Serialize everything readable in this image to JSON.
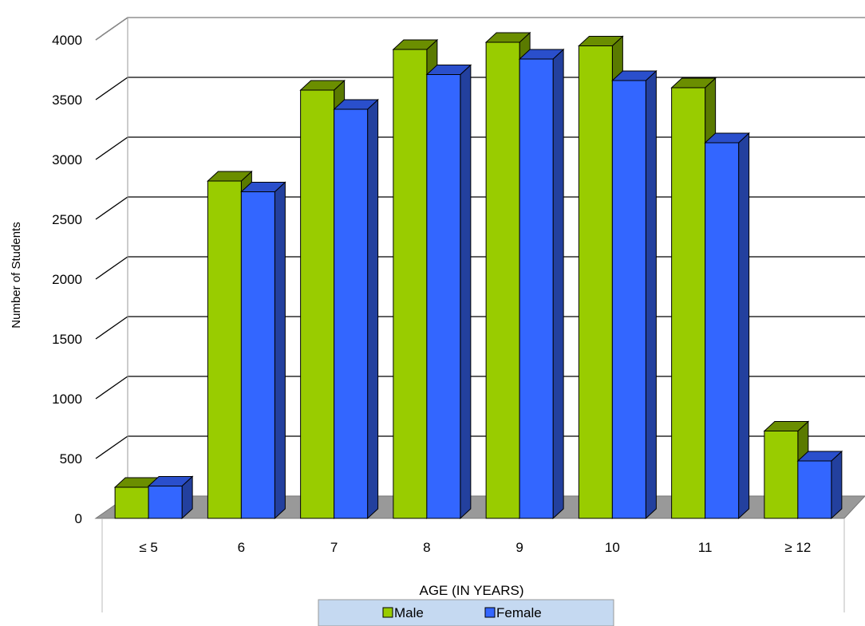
{
  "chart_data": {
    "type": "bar",
    "categories": [
      "≤ 5",
      "6",
      "7",
      "8",
      "9",
      "10",
      "11",
      "≥ 12"
    ],
    "series": [
      {
        "name": "Male",
        "values": [
          260,
          2820,
          3580,
          3920,
          3980,
          3950,
          3600,
          730
        ],
        "color": "#99cc00",
        "top_color": "#6b8e00",
        "side_color": "#5a7a00"
      },
      {
        "name": "Female",
        "values": [
          270,
          2730,
          3420,
          3710,
          3840,
          3660,
          3140,
          480
        ],
        "color": "#3366ff",
        "top_color": "#2a4fcc",
        "side_color": "#23409e"
      }
    ],
    "y_ticks": [
      0,
      500,
      1000,
      1500,
      2000,
      2500,
      3000,
      3500,
      4000
    ],
    "ylim": [
      0,
      4000
    ],
    "xlabel": "AGE (IN YEARS)",
    "ylabel": "Number of Students",
    "grid": true,
    "legend_position": "bottom",
    "floor_color": "#999999",
    "legend_bg": "#c5d9f1"
  }
}
